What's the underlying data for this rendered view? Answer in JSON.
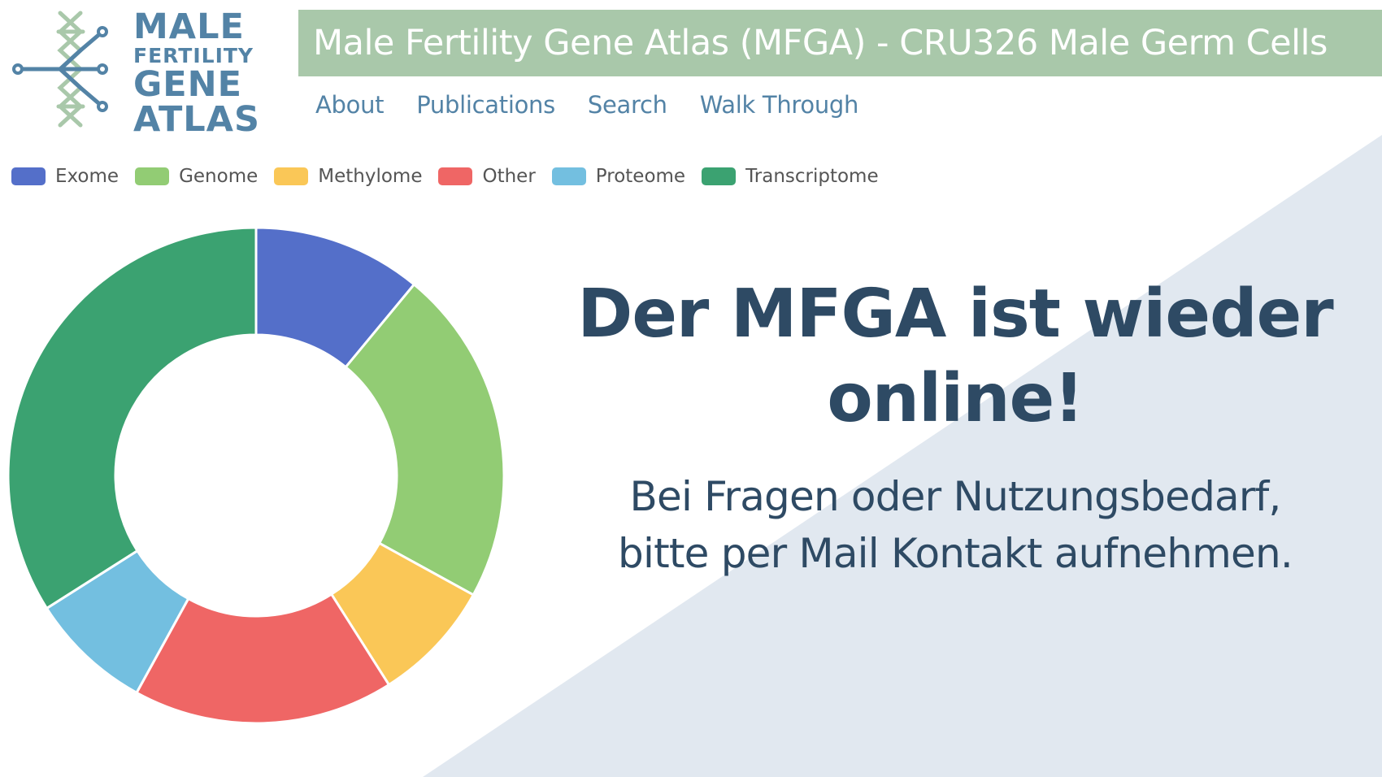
{
  "logo": {
    "line1": "MALE",
    "line2": "FERTILITY",
    "line3": "GENE",
    "line4": "ATLAS"
  },
  "header": {
    "title": "Male Fertility Gene Atlas (MFGA) - CRU326 Male Germ Cells"
  },
  "nav": {
    "items": [
      "About",
      "Publications",
      "Search",
      "Walk Through"
    ]
  },
  "colors": {
    "accent_green": "#a9c8aa",
    "nav_blue": "#5383a6",
    "text_dark": "#2e4a64",
    "background_triangle": "#e1e8f0"
  },
  "chart_data": {
    "type": "pie",
    "variant": "doughnut",
    "legend_position": "top-left",
    "series": [
      {
        "name": "Exome",
        "value": 11,
        "color": "#546fc9"
      },
      {
        "name": "Genome",
        "value": 22,
        "color": "#92cc74"
      },
      {
        "name": "Methylome",
        "value": 8,
        "color": "#fac757"
      },
      {
        "name": "Other",
        "value": 17,
        "color": "#ef6665"
      },
      {
        "name": "Proteome",
        "value": 8,
        "color": "#73bfe0"
      },
      {
        "name": "Transcriptome",
        "value": 34,
        "color": "#3ba271"
      }
    ]
  },
  "main": {
    "headline": [
      "Der MFGA ist wieder",
      "online!"
    ],
    "subtext": [
      "Bei Fragen oder Nutzungsbedarf,",
      "bitte per Mail Kontakt aufnehmen."
    ]
  }
}
